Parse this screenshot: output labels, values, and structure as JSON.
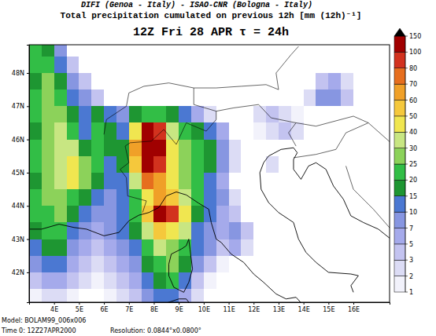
{
  "chart_data": {
    "type": "heatmap",
    "credit": "DIFI (Genoa - Italy)  -  ISAO-CNR (Bologna - Italy)",
    "title": "Total precipitation cumulated on previous 12h [mm (12h)⁻¹]",
    "subtitle": "12Z Fri 28 APR  τ = 24h",
    "annotations": [
      "Model: BOLAM99_006x006",
      "Time 0: 12Z27APR2000",
      "Resolution: 0.0844°x0.0800°"
    ],
    "grid": false,
    "xlim": [
      3,
      17.45
    ],
    "xticks": [
      {
        "value": 4,
        "label": "4E"
      },
      {
        "value": 5,
        "label": "5E"
      },
      {
        "value": 6,
        "label": "6E"
      },
      {
        "value": 7,
        "label": "7E"
      },
      {
        "value": 8,
        "label": "8E"
      },
      {
        "value": 9,
        "label": "9E"
      },
      {
        "value": 10,
        "label": "10E"
      },
      {
        "value": 11,
        "label": "11E"
      },
      {
        "value": 12,
        "label": "12E"
      },
      {
        "value": 13,
        "label": "13E"
      },
      {
        "value": 14,
        "label": "14E"
      },
      {
        "value": 15,
        "label": "15E"
      },
      {
        "value": 16,
        "label": "16E"
      }
    ],
    "ylim": [
      41.1,
      48.85
    ],
    "yticks": [
      {
        "value": 42,
        "label": "42N"
      },
      {
        "value": 43,
        "label": "43N"
      },
      {
        "value": 44,
        "label": "44N"
      },
      {
        "value": 45,
        "label": "45N"
      },
      {
        "value": 46,
        "label": "46N"
      },
      {
        "value": 47,
        "label": "47N"
      },
      {
        "value": 48,
        "label": "48N"
      }
    ],
    "x": [
      3.25,
      3.75,
      4.25,
      4.75,
      5.25,
      5.75,
      6.25,
      6.75,
      7.25,
      7.75,
      8.25,
      8.75,
      9.25,
      9.75,
      10.25,
      10.75,
      11.25,
      11.75,
      12.25,
      12.75,
      13.25,
      13.75,
      14.25,
      14.75,
      15.25,
      15.75,
      16.25,
      16.75,
      17.25
    ],
    "y": [
      48.75,
      48.25,
      47.75,
      47.25,
      46.75,
      46.25,
      45.75,
      45.25,
      44.75,
      44.25,
      43.75,
      43.25,
      42.75,
      42.25,
      41.75,
      41.25
    ],
    "values": [
      [
        20,
        15,
        7,
        0,
        0,
        0,
        0,
        0,
        0,
        0,
        0,
        0,
        0,
        0,
        0,
        0,
        0,
        0,
        0,
        0,
        0,
        0,
        0,
        0,
        0,
        0,
        0,
        0,
        0
      ],
      [
        20,
        20,
        10,
        3,
        0,
        0,
        0,
        0,
        0,
        0,
        0,
        0,
        0,
        0,
        0,
        0,
        0,
        0,
        0,
        0,
        0,
        0,
        0,
        0,
        0,
        0,
        0,
        0,
        0
      ],
      [
        15,
        25,
        15,
        7,
        3,
        0,
        0,
        0,
        0,
        0,
        0,
        0,
        0,
        0,
        0,
        0,
        0,
        0,
        0,
        0,
        0,
        0,
        0,
        3,
        5,
        2,
        0,
        0,
        0
      ],
      [
        20,
        25,
        20,
        10,
        7,
        3,
        0,
        0,
        0,
        0,
        0,
        0,
        0,
        0,
        0,
        0,
        0,
        0,
        0,
        0,
        0,
        0,
        2,
        7,
        7,
        3,
        0,
        0,
        0
      ],
      [
        20,
        25,
        25,
        15,
        10,
        15,
        10,
        7,
        15,
        20,
        20,
        15,
        10,
        5,
        2,
        0,
        0,
        0,
        2,
        3,
        2,
        1,
        0,
        0,
        0,
        0,
        0,
        0,
        0
      ],
      [
        15,
        25,
        30,
        20,
        10,
        20,
        15,
        10,
        40,
        100,
        80,
        30,
        20,
        15,
        10,
        5,
        0,
        0,
        1,
        2,
        3,
        2,
        0,
        0,
        0,
        0,
        0,
        0,
        0
      ],
      [
        20,
        25,
        30,
        30,
        15,
        20,
        15,
        15,
        60,
        100,
        100,
        40,
        25,
        20,
        15,
        7,
        2,
        0,
        0,
        0,
        0,
        0,
        0,
        0,
        0,
        0,
        0,
        0,
        0
      ],
      [
        20,
        25,
        30,
        40,
        25,
        20,
        10,
        15,
        50,
        100,
        80,
        40,
        25,
        20,
        15,
        7,
        2,
        0,
        0,
        2,
        0,
        0,
        0,
        0,
        0,
        0,
        0,
        0,
        0
      ],
      [
        15,
        25,
        30,
        40,
        25,
        15,
        10,
        10,
        30,
        70,
        60,
        40,
        25,
        20,
        10,
        5,
        0,
        0,
        0,
        0,
        0,
        0,
        0,
        0,
        0,
        0,
        0,
        0,
        0
      ],
      [
        20,
        25,
        25,
        20,
        15,
        10,
        7,
        10,
        20,
        40,
        60,
        50,
        30,
        20,
        10,
        7,
        2,
        0,
        0,
        0,
        0,
        0,
        0,
        0,
        0,
        0,
        0,
        0,
        0
      ],
      [
        20,
        20,
        25,
        15,
        10,
        7,
        7,
        10,
        20,
        50,
        100,
        80,
        40,
        15,
        10,
        5,
        3,
        0,
        0,
        0,
        0,
        0,
        0,
        0,
        0,
        0,
        0,
        0,
        0
      ],
      [
        15,
        20,
        20,
        10,
        7,
        5,
        7,
        10,
        15,
        30,
        50,
        40,
        30,
        10,
        7,
        5,
        7,
        3,
        0,
        0,
        0,
        0,
        0,
        0,
        0,
        0,
        0,
        0,
        0
      ],
      [
        10,
        15,
        15,
        7,
        5,
        3,
        5,
        7,
        10,
        20,
        30,
        25,
        20,
        10,
        7,
        3,
        5,
        2,
        0,
        0,
        0,
        0,
        0,
        0,
        0,
        0,
        0,
        0,
        0
      ],
      [
        7,
        10,
        10,
        5,
        3,
        2,
        3,
        5,
        7,
        15,
        20,
        25,
        15,
        7,
        3,
        1,
        0,
        0,
        0,
        0,
        0,
        0,
        0,
        0,
        0,
        0,
        0,
        0,
        0
      ],
      [
        3,
        5,
        5,
        3,
        2,
        1,
        2,
        3,
        5,
        10,
        15,
        20,
        10,
        3,
        1,
        0,
        0,
        0,
        0,
        0,
        0,
        0,
        0,
        0,
        0,
        0,
        0,
        0,
        0
      ],
      [
        1,
        2,
        2,
        1,
        0,
        0,
        1,
        2,
        3,
        7,
        10,
        10,
        5,
        2,
        0,
        0,
        0,
        0,
        0,
        0,
        0,
        0,
        0,
        0,
        0,
        0,
        0,
        0,
        0
      ]
    ],
    "colorbar": {
      "range": [
        1,
        150
      ],
      "ticks": [
        1,
        2,
        3,
        5,
        7,
        10,
        15,
        20,
        25,
        30,
        40,
        50,
        60,
        70,
        80,
        100,
        150
      ],
      "colors": [
        "#ffffff",
        "#f2f2fb",
        "#dcdcf5",
        "#c3c3f0",
        "#a5aaeb",
        "#8796e1",
        "#4b78d2",
        "#1e9632",
        "#32be46",
        "#8cd25a",
        "#c8e682",
        "#f0e650",
        "#f5c83c",
        "#f0a028",
        "#e66e1e",
        "#d2321e",
        "#a00000",
        "#000000"
      ]
    }
  }
}
